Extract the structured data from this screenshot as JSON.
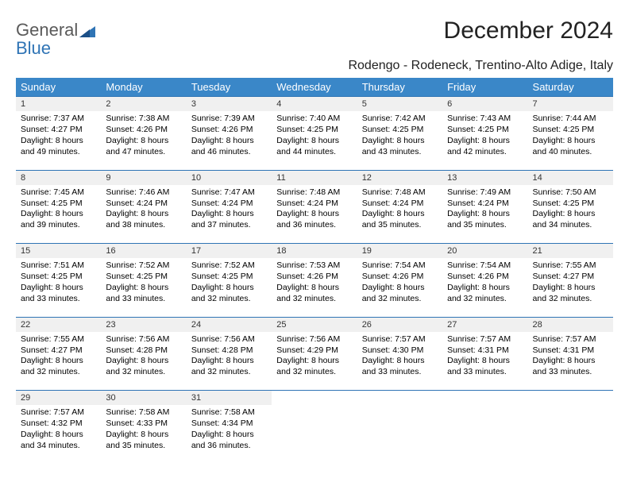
{
  "brand": {
    "line1": "General",
    "line2": "Blue"
  },
  "title": "December 2024",
  "subtitle": "Rodengo - Rodeneck, Trentino-Alto Adige, Italy",
  "colors": {
    "header_bg": "#3a87c8",
    "header_text": "#ffffff",
    "daynum_bg": "#f0f0f0",
    "rule": "#2f74b5",
    "page_bg": "#ffffff",
    "logo_gray": "#5a5a5a",
    "logo_blue": "#2f74b5"
  },
  "typography": {
    "title_fontsize": 30,
    "subtitle_fontsize": 16,
    "header_fontsize": 13,
    "daynum_fontsize": 11,
    "cell_fontsize": 10.5
  },
  "weekdays": [
    "Sunday",
    "Monday",
    "Tuesday",
    "Wednesday",
    "Thursday",
    "Friday",
    "Saturday"
  ],
  "weeks": [
    [
      {
        "num": "1",
        "l1": "Sunrise: 7:37 AM",
        "l2": "Sunset: 4:27 PM",
        "l3": "Daylight: 8 hours",
        "l4": "and 49 minutes."
      },
      {
        "num": "2",
        "l1": "Sunrise: 7:38 AM",
        "l2": "Sunset: 4:26 PM",
        "l3": "Daylight: 8 hours",
        "l4": "and 47 minutes."
      },
      {
        "num": "3",
        "l1": "Sunrise: 7:39 AM",
        "l2": "Sunset: 4:26 PM",
        "l3": "Daylight: 8 hours",
        "l4": "and 46 minutes."
      },
      {
        "num": "4",
        "l1": "Sunrise: 7:40 AM",
        "l2": "Sunset: 4:25 PM",
        "l3": "Daylight: 8 hours",
        "l4": "and 44 minutes."
      },
      {
        "num": "5",
        "l1": "Sunrise: 7:42 AM",
        "l2": "Sunset: 4:25 PM",
        "l3": "Daylight: 8 hours",
        "l4": "and 43 minutes."
      },
      {
        "num": "6",
        "l1": "Sunrise: 7:43 AM",
        "l2": "Sunset: 4:25 PM",
        "l3": "Daylight: 8 hours",
        "l4": "and 42 minutes."
      },
      {
        "num": "7",
        "l1": "Sunrise: 7:44 AM",
        "l2": "Sunset: 4:25 PM",
        "l3": "Daylight: 8 hours",
        "l4": "and 40 minutes."
      }
    ],
    [
      {
        "num": "8",
        "l1": "Sunrise: 7:45 AM",
        "l2": "Sunset: 4:25 PM",
        "l3": "Daylight: 8 hours",
        "l4": "and 39 minutes."
      },
      {
        "num": "9",
        "l1": "Sunrise: 7:46 AM",
        "l2": "Sunset: 4:24 PM",
        "l3": "Daylight: 8 hours",
        "l4": "and 38 minutes."
      },
      {
        "num": "10",
        "l1": "Sunrise: 7:47 AM",
        "l2": "Sunset: 4:24 PM",
        "l3": "Daylight: 8 hours",
        "l4": "and 37 minutes."
      },
      {
        "num": "11",
        "l1": "Sunrise: 7:48 AM",
        "l2": "Sunset: 4:24 PM",
        "l3": "Daylight: 8 hours",
        "l4": "and 36 minutes."
      },
      {
        "num": "12",
        "l1": "Sunrise: 7:48 AM",
        "l2": "Sunset: 4:24 PM",
        "l3": "Daylight: 8 hours",
        "l4": "and 35 minutes."
      },
      {
        "num": "13",
        "l1": "Sunrise: 7:49 AM",
        "l2": "Sunset: 4:24 PM",
        "l3": "Daylight: 8 hours",
        "l4": "and 35 minutes."
      },
      {
        "num": "14",
        "l1": "Sunrise: 7:50 AM",
        "l2": "Sunset: 4:25 PM",
        "l3": "Daylight: 8 hours",
        "l4": "and 34 minutes."
      }
    ],
    [
      {
        "num": "15",
        "l1": "Sunrise: 7:51 AM",
        "l2": "Sunset: 4:25 PM",
        "l3": "Daylight: 8 hours",
        "l4": "and 33 minutes."
      },
      {
        "num": "16",
        "l1": "Sunrise: 7:52 AM",
        "l2": "Sunset: 4:25 PM",
        "l3": "Daylight: 8 hours",
        "l4": "and 33 minutes."
      },
      {
        "num": "17",
        "l1": "Sunrise: 7:52 AM",
        "l2": "Sunset: 4:25 PM",
        "l3": "Daylight: 8 hours",
        "l4": "and 32 minutes."
      },
      {
        "num": "18",
        "l1": "Sunrise: 7:53 AM",
        "l2": "Sunset: 4:26 PM",
        "l3": "Daylight: 8 hours",
        "l4": "and 32 minutes."
      },
      {
        "num": "19",
        "l1": "Sunrise: 7:54 AM",
        "l2": "Sunset: 4:26 PM",
        "l3": "Daylight: 8 hours",
        "l4": "and 32 minutes."
      },
      {
        "num": "20",
        "l1": "Sunrise: 7:54 AM",
        "l2": "Sunset: 4:26 PM",
        "l3": "Daylight: 8 hours",
        "l4": "and 32 minutes."
      },
      {
        "num": "21",
        "l1": "Sunrise: 7:55 AM",
        "l2": "Sunset: 4:27 PM",
        "l3": "Daylight: 8 hours",
        "l4": "and 32 minutes."
      }
    ],
    [
      {
        "num": "22",
        "l1": "Sunrise: 7:55 AM",
        "l2": "Sunset: 4:27 PM",
        "l3": "Daylight: 8 hours",
        "l4": "and 32 minutes."
      },
      {
        "num": "23",
        "l1": "Sunrise: 7:56 AM",
        "l2": "Sunset: 4:28 PM",
        "l3": "Daylight: 8 hours",
        "l4": "and 32 minutes."
      },
      {
        "num": "24",
        "l1": "Sunrise: 7:56 AM",
        "l2": "Sunset: 4:28 PM",
        "l3": "Daylight: 8 hours",
        "l4": "and 32 minutes."
      },
      {
        "num": "25",
        "l1": "Sunrise: 7:56 AM",
        "l2": "Sunset: 4:29 PM",
        "l3": "Daylight: 8 hours",
        "l4": "and 32 minutes."
      },
      {
        "num": "26",
        "l1": "Sunrise: 7:57 AM",
        "l2": "Sunset: 4:30 PM",
        "l3": "Daylight: 8 hours",
        "l4": "and 33 minutes."
      },
      {
        "num": "27",
        "l1": "Sunrise: 7:57 AM",
        "l2": "Sunset: 4:31 PM",
        "l3": "Daylight: 8 hours",
        "l4": "and 33 minutes."
      },
      {
        "num": "28",
        "l1": "Sunrise: 7:57 AM",
        "l2": "Sunset: 4:31 PM",
        "l3": "Daylight: 8 hours",
        "l4": "and 33 minutes."
      }
    ],
    [
      {
        "num": "29",
        "l1": "Sunrise: 7:57 AM",
        "l2": "Sunset: 4:32 PM",
        "l3": "Daylight: 8 hours",
        "l4": "and 34 minutes."
      },
      {
        "num": "30",
        "l1": "Sunrise: 7:58 AM",
        "l2": "Sunset: 4:33 PM",
        "l3": "Daylight: 8 hours",
        "l4": "and 35 minutes."
      },
      {
        "num": "31",
        "l1": "Sunrise: 7:58 AM",
        "l2": "Sunset: 4:34 PM",
        "l3": "Daylight: 8 hours",
        "l4": "and 36 minutes."
      },
      null,
      null,
      null,
      null
    ]
  ]
}
